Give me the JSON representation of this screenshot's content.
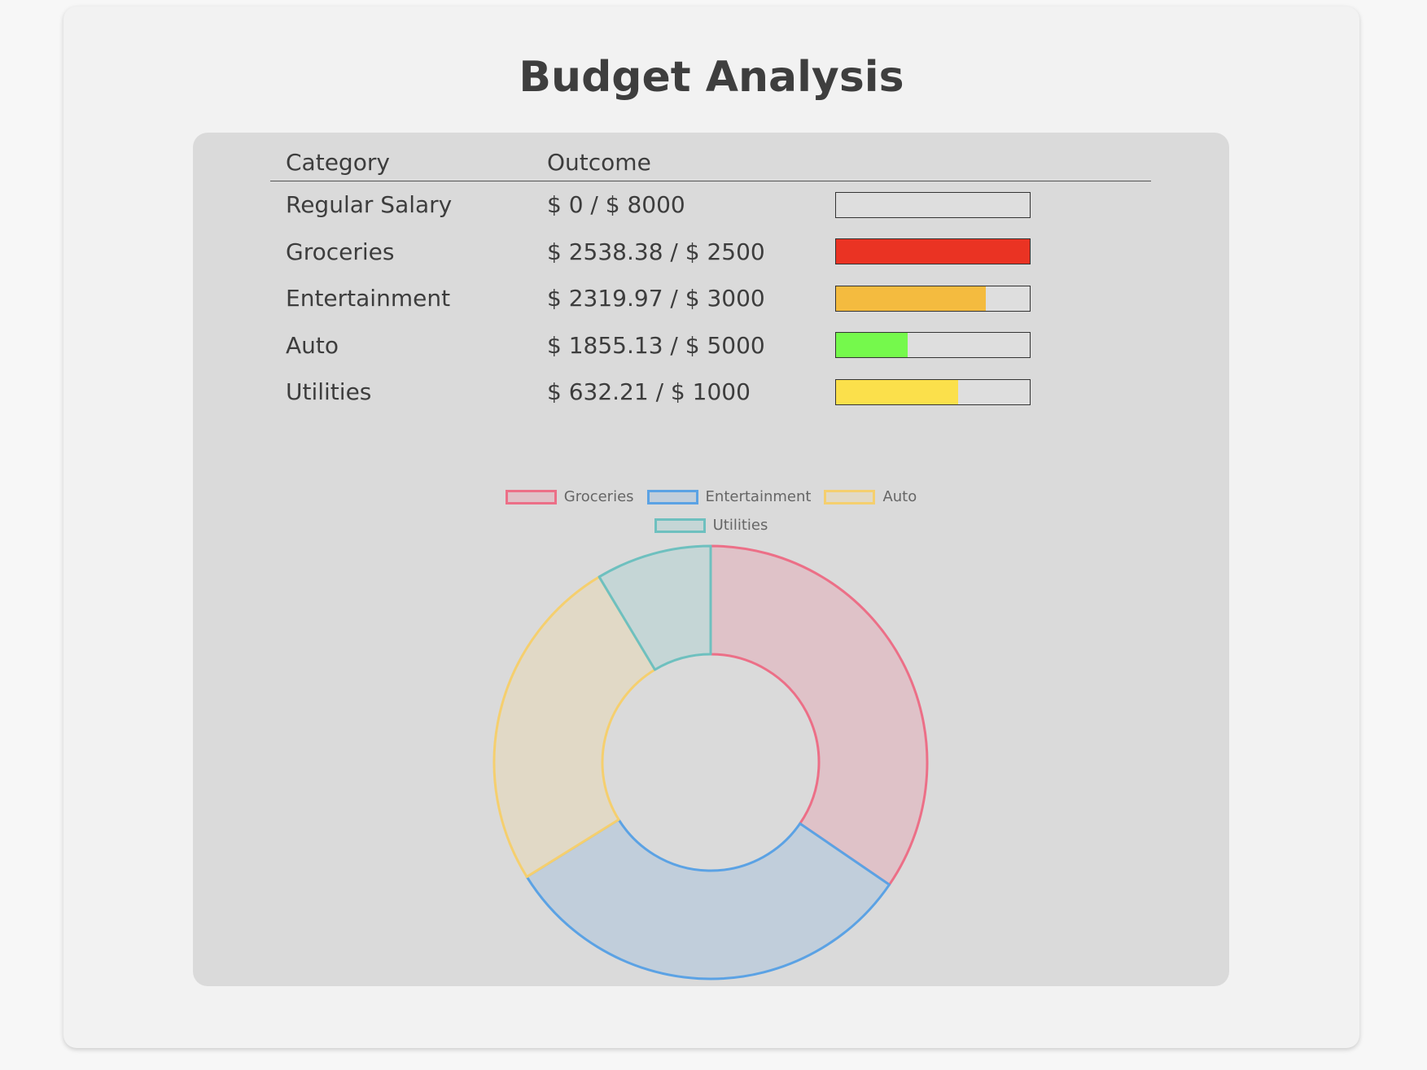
{
  "page": {
    "title": "Budget Analysis"
  },
  "table": {
    "headers": [
      "Category",
      "Outcome",
      ""
    ],
    "rows": [
      {
        "category": "Regular Salary",
        "outcome": "$ 0 / $ 8000",
        "progress": 0.0,
        "bar_color": "#dedede"
      },
      {
        "category": "Groceries",
        "outcome": "$ 2538.38 / $ 2500",
        "progress": 1.0,
        "bar_color": "#ea3323"
      },
      {
        "category": "Entertainment",
        "outcome": "$ 2319.97 / $ 3000",
        "progress": 0.773,
        "bar_color": "#f4bb3f"
      },
      {
        "category": "Auto",
        "outcome": "$ 1855.13 / $ 5000",
        "progress": 0.371,
        "bar_color": "#75f94c"
      },
      {
        "category": "Utilities",
        "outcome": "$ 632.21 / $ 1000",
        "progress": 0.632,
        "bar_color": "#fbe04b"
      }
    ]
  },
  "chart_data": {
    "type": "pie",
    "variant": "doughnut",
    "categories": [
      "Groceries",
      "Entertainment",
      "Auto",
      "Utilities"
    ],
    "values": [
      2538.38,
      2319.97,
      1855.13,
      632.21
    ],
    "colors": {
      "border": [
        "#ec6f87",
        "#5ba2e4",
        "#f5cf6e",
        "#6ec0bf"
      ],
      "fill": [
        "#dfc2c8",
        "#c1cedb",
        "#e1d9c6",
        "#c5d6d6"
      ]
    },
    "legend_position": "top",
    "title": ""
  }
}
